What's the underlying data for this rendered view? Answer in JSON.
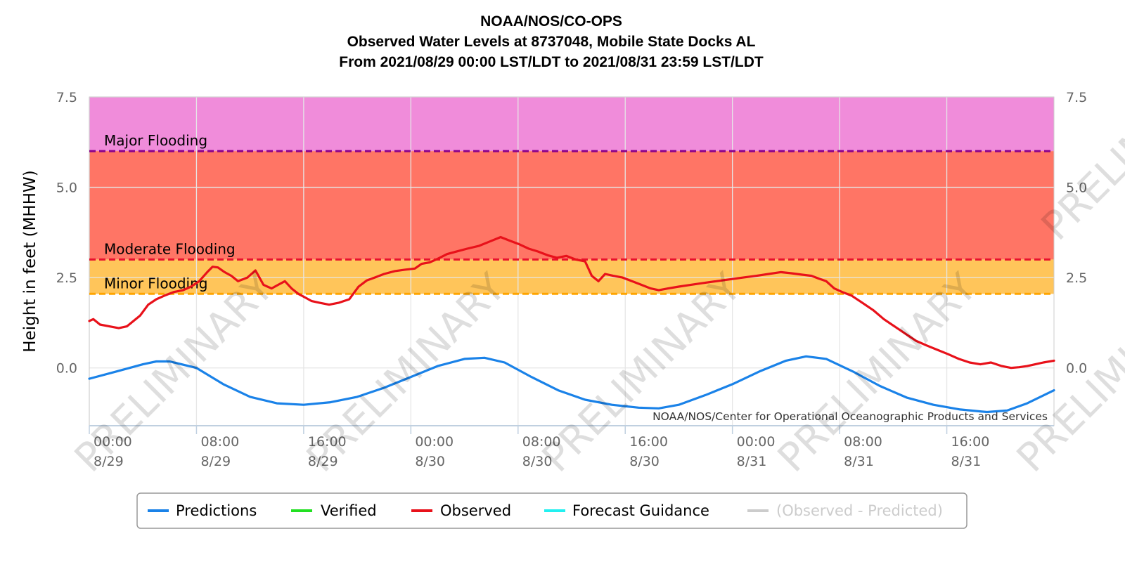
{
  "chart_data": {
    "type": "line",
    "title_lines": [
      "NOAA/NOS/CO-OPS",
      "Observed Water Levels at 8737048, Mobile State Docks AL",
      "From 2021/08/29 00:00 LST/LDT to 2021/08/31 23:59 LST/LDT"
    ],
    "ylabel": "Height in feet (MHHW)",
    "ylim": [
      -1.6,
      7.5
    ],
    "yticks": [
      "7.5",
      "5.0",
      "2.5",
      "0.0"
    ],
    "yticks_values": [
      7.5,
      5.0,
      2.5,
      0.0
    ],
    "xlim_hours": [
      0,
      72
    ],
    "xticks": [
      {
        "hour": 0,
        "time": "00:00",
        "date": "8/29"
      },
      {
        "hour": 8,
        "time": "08:00",
        "date": "8/29"
      },
      {
        "hour": 16,
        "time": "16:00",
        "date": "8/29"
      },
      {
        "hour": 24,
        "time": "00:00",
        "date": "8/30"
      },
      {
        "hour": 32,
        "time": "08:00",
        "date": "8/30"
      },
      {
        "hour": 40,
        "time": "16:00",
        "date": "8/30"
      },
      {
        "hour": 48,
        "time": "00:00",
        "date": "8/31"
      },
      {
        "hour": 56,
        "time": "08:00",
        "date": "8/31"
      },
      {
        "hour": 64,
        "time": "16:00",
        "date": "8/31"
      }
    ],
    "thresholds": [
      {
        "name": "Major Flooding",
        "value": 6.0,
        "color": "#8b008b",
        "band_color": "#f08cda"
      },
      {
        "name": "Moderate Flooding",
        "value": 3.0,
        "color": "#e8112d",
        "band_color": "#ff7565"
      },
      {
        "name": "Minor Flooding",
        "value": 2.05,
        "color": "#ffa500",
        "band_color": "#ffc55a"
      }
    ],
    "credit": "NOAA/NOS/Center for Operational Oceanographic Products and Services",
    "watermark": "PRELIMINARY",
    "series": [
      {
        "name": "Predictions",
        "color": "#1a82e8",
        "x_hours": [
          0,
          2,
          4,
          5,
          6,
          8,
          10,
          12,
          14,
          16,
          18,
          20,
          22,
          24,
          26,
          28,
          29.5,
          31,
          33,
          35,
          37,
          39,
          41,
          42.5,
          44,
          46,
          48,
          50,
          52,
          53.5,
          55,
          57,
          59,
          61,
          63,
          65,
          67,
          68.5,
          70,
          72
        ],
        "values": [
          -0.3,
          -0.1,
          0.1,
          0.18,
          0.18,
          0.0,
          -0.45,
          -0.8,
          -0.98,
          -1.02,
          -0.95,
          -0.8,
          -0.55,
          -0.25,
          0.05,
          0.25,
          0.28,
          0.15,
          -0.25,
          -0.62,
          -0.88,
          -1.02,
          -1.1,
          -1.12,
          -1.02,
          -0.75,
          -0.45,
          -0.1,
          0.2,
          0.32,
          0.25,
          -0.1,
          -0.5,
          -0.82,
          -1.02,
          -1.15,
          -1.22,
          -1.18,
          -0.98,
          -0.62
        ]
      },
      {
        "name": "Verified",
        "color": "#22e022",
        "x_hours": [],
        "values": []
      },
      {
        "name": "Observed",
        "color": "#e8111a",
        "x_hours": [
          0,
          0.3,
          0.8,
          1.5,
          2.2,
          2.8,
          3.3,
          3.8,
          4.4,
          5.0,
          5.6,
          6.3,
          7.0,
          7.6,
          8.2,
          8.8,
          9.2,
          9.6,
          10.1,
          10.6,
          11.1,
          11.8,
          12.4,
          13.0,
          13.6,
          14.1,
          14.6,
          15.1,
          15.6,
          16.1,
          16.6,
          17.2,
          17.9,
          18.6,
          19.4,
          20.1,
          20.7,
          21.3,
          22.0,
          22.8,
          23.6,
          24.3,
          24.8,
          25.4,
          26.0,
          26.7,
          27.4,
          28.2,
          29.1,
          29.9,
          30.7,
          31.4,
          32.1,
          32.8,
          33.5,
          34.2,
          34.9,
          35.6,
          36.3,
          37.0,
          37.5,
          38.0,
          38.5,
          39.1,
          39.8,
          40.5,
          41.2,
          41.9,
          42.5,
          43.2,
          44.0,
          44.9,
          45.8,
          46.8,
          47.8,
          48.8,
          49.8,
          50.7,
          51.6,
          52.4,
          53.2,
          53.9,
          54.4,
          55.0,
          55.6,
          56.2,
          56.9,
          57.7,
          58.5,
          59.3,
          60.1,
          60.9,
          61.7,
          62.5,
          63.3,
          64.1,
          64.9,
          65.7,
          66.5,
          67.3,
          68.1,
          68.8,
          69.4,
          70.0,
          70.6,
          71.2,
          72.0
        ],
        "values": [
          1.3,
          1.35,
          1.2,
          1.15,
          1.1,
          1.15,
          1.3,
          1.45,
          1.75,
          1.9,
          2.0,
          2.1,
          2.15,
          2.25,
          2.4,
          2.65,
          2.8,
          2.78,
          2.65,
          2.55,
          2.4,
          2.5,
          2.7,
          2.3,
          2.2,
          2.3,
          2.4,
          2.2,
          2.05,
          1.95,
          1.85,
          1.8,
          1.75,
          1.8,
          1.9,
          2.25,
          2.42,
          2.5,
          2.6,
          2.68,
          2.72,
          2.75,
          2.88,
          2.92,
          3.02,
          3.15,
          3.22,
          3.3,
          3.38,
          3.5,
          3.62,
          3.52,
          3.42,
          3.3,
          3.22,
          3.12,
          3.05,
          3.1,
          3.0,
          2.95,
          2.55,
          2.4,
          2.6,
          2.55,
          2.5,
          2.4,
          2.3,
          2.2,
          2.15,
          2.2,
          2.25,
          2.3,
          2.35,
          2.4,
          2.45,
          2.5,
          2.55,
          2.6,
          2.65,
          2.62,
          2.58,
          2.55,
          2.48,
          2.4,
          2.2,
          2.1,
          2.0,
          1.8,
          1.6,
          1.35,
          1.15,
          0.95,
          0.75,
          0.62,
          0.5,
          0.38,
          0.25,
          0.15,
          0.1,
          0.15,
          0.05,
          0.0,
          0.02,
          0.05,
          0.1,
          0.15,
          0.2
        ]
      },
      {
        "name": "Forecast Guidance",
        "color": "#22f0f0",
        "x_hours": [],
        "values": []
      },
      {
        "name": "(Observed - Predicted)",
        "color": "#cccccc",
        "x_hours": [],
        "values": [],
        "hidden": true
      }
    ],
    "legend_placement": "bottom"
  }
}
